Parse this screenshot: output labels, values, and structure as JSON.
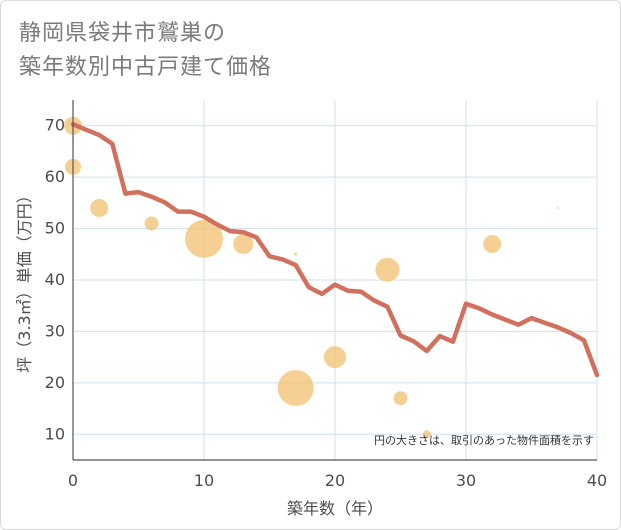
{
  "title_line1": "静岡県袋井市鷲巣の",
  "title_line2": "築年数別中古戸建て価格",
  "chart_data": {
    "type": "scatter+line",
    "title": "静岡県袋井市鷲巣の築年数別中古戸建て価格",
    "xlabel": "築年数（年）",
    "ylabel": "坪（3.3㎡）単価（万円）",
    "xlim": [
      0,
      40
    ],
    "ylim": [
      5,
      75
    ],
    "xticks": [
      0,
      10,
      20,
      30,
      40
    ],
    "yticks": [
      10,
      20,
      30,
      40,
      50,
      60,
      70
    ],
    "note": "円の大きさは、取引のあった物件面積を示す",
    "colors": {
      "line": "#d2705e",
      "bubble": "#f3c06e",
      "grid": "#cfe0ee",
      "axis": "#555555"
    },
    "line": {
      "x": [
        0,
        1,
        2,
        3,
        4,
        5,
        6,
        7,
        8,
        9,
        10,
        11,
        12,
        13,
        14,
        15,
        16,
        17,
        18,
        19,
        20,
        21,
        22,
        23,
        24,
        25,
        26,
        27,
        28,
        29,
        30,
        31,
        32,
        33,
        34,
        35,
        36,
        37,
        38,
        39,
        40
      ],
      "y": [
        70.3,
        69.2,
        68.2,
        66.5,
        56.8,
        57.1,
        56.2,
        55.1,
        53.3,
        53.3,
        52.3,
        50.8,
        49.5,
        49.3,
        48.3,
        44.6,
        44.0,
        42.9,
        38.6,
        37.3,
        39.1,
        37.9,
        37.7,
        36.0,
        34.8,
        29.2,
        28.1,
        26.2,
        29.1,
        28.0,
        35.4,
        34.5,
        33.3,
        32.3,
        31.3,
        32.6,
        31.7,
        30.8,
        29.7,
        28.3,
        21.5
      ]
    },
    "bubbles": [
      {
        "x": 0,
        "y": 70,
        "size": 9
      },
      {
        "x": 0,
        "y": 62,
        "size": 8
      },
      {
        "x": 2,
        "y": 54,
        "size": 9
      },
      {
        "x": 6,
        "y": 51,
        "size": 7
      },
      {
        "x": 10,
        "y": 48,
        "size": 19
      },
      {
        "x": 13,
        "y": 47,
        "size": 10
      },
      {
        "x": 17,
        "y": 45,
        "size": 1.5
      },
      {
        "x": 17,
        "y": 19,
        "size": 18
      },
      {
        "x": 20,
        "y": 25,
        "size": 11
      },
      {
        "x": 24,
        "y": 42,
        "size": 12
      },
      {
        "x": 25,
        "y": 17,
        "size": 7
      },
      {
        "x": 27,
        "y": 10,
        "size": 4
      },
      {
        "x": 32,
        "y": 47,
        "size": 9
      },
      {
        "x": 37,
        "y": 54,
        "size": 1
      }
    ]
  }
}
